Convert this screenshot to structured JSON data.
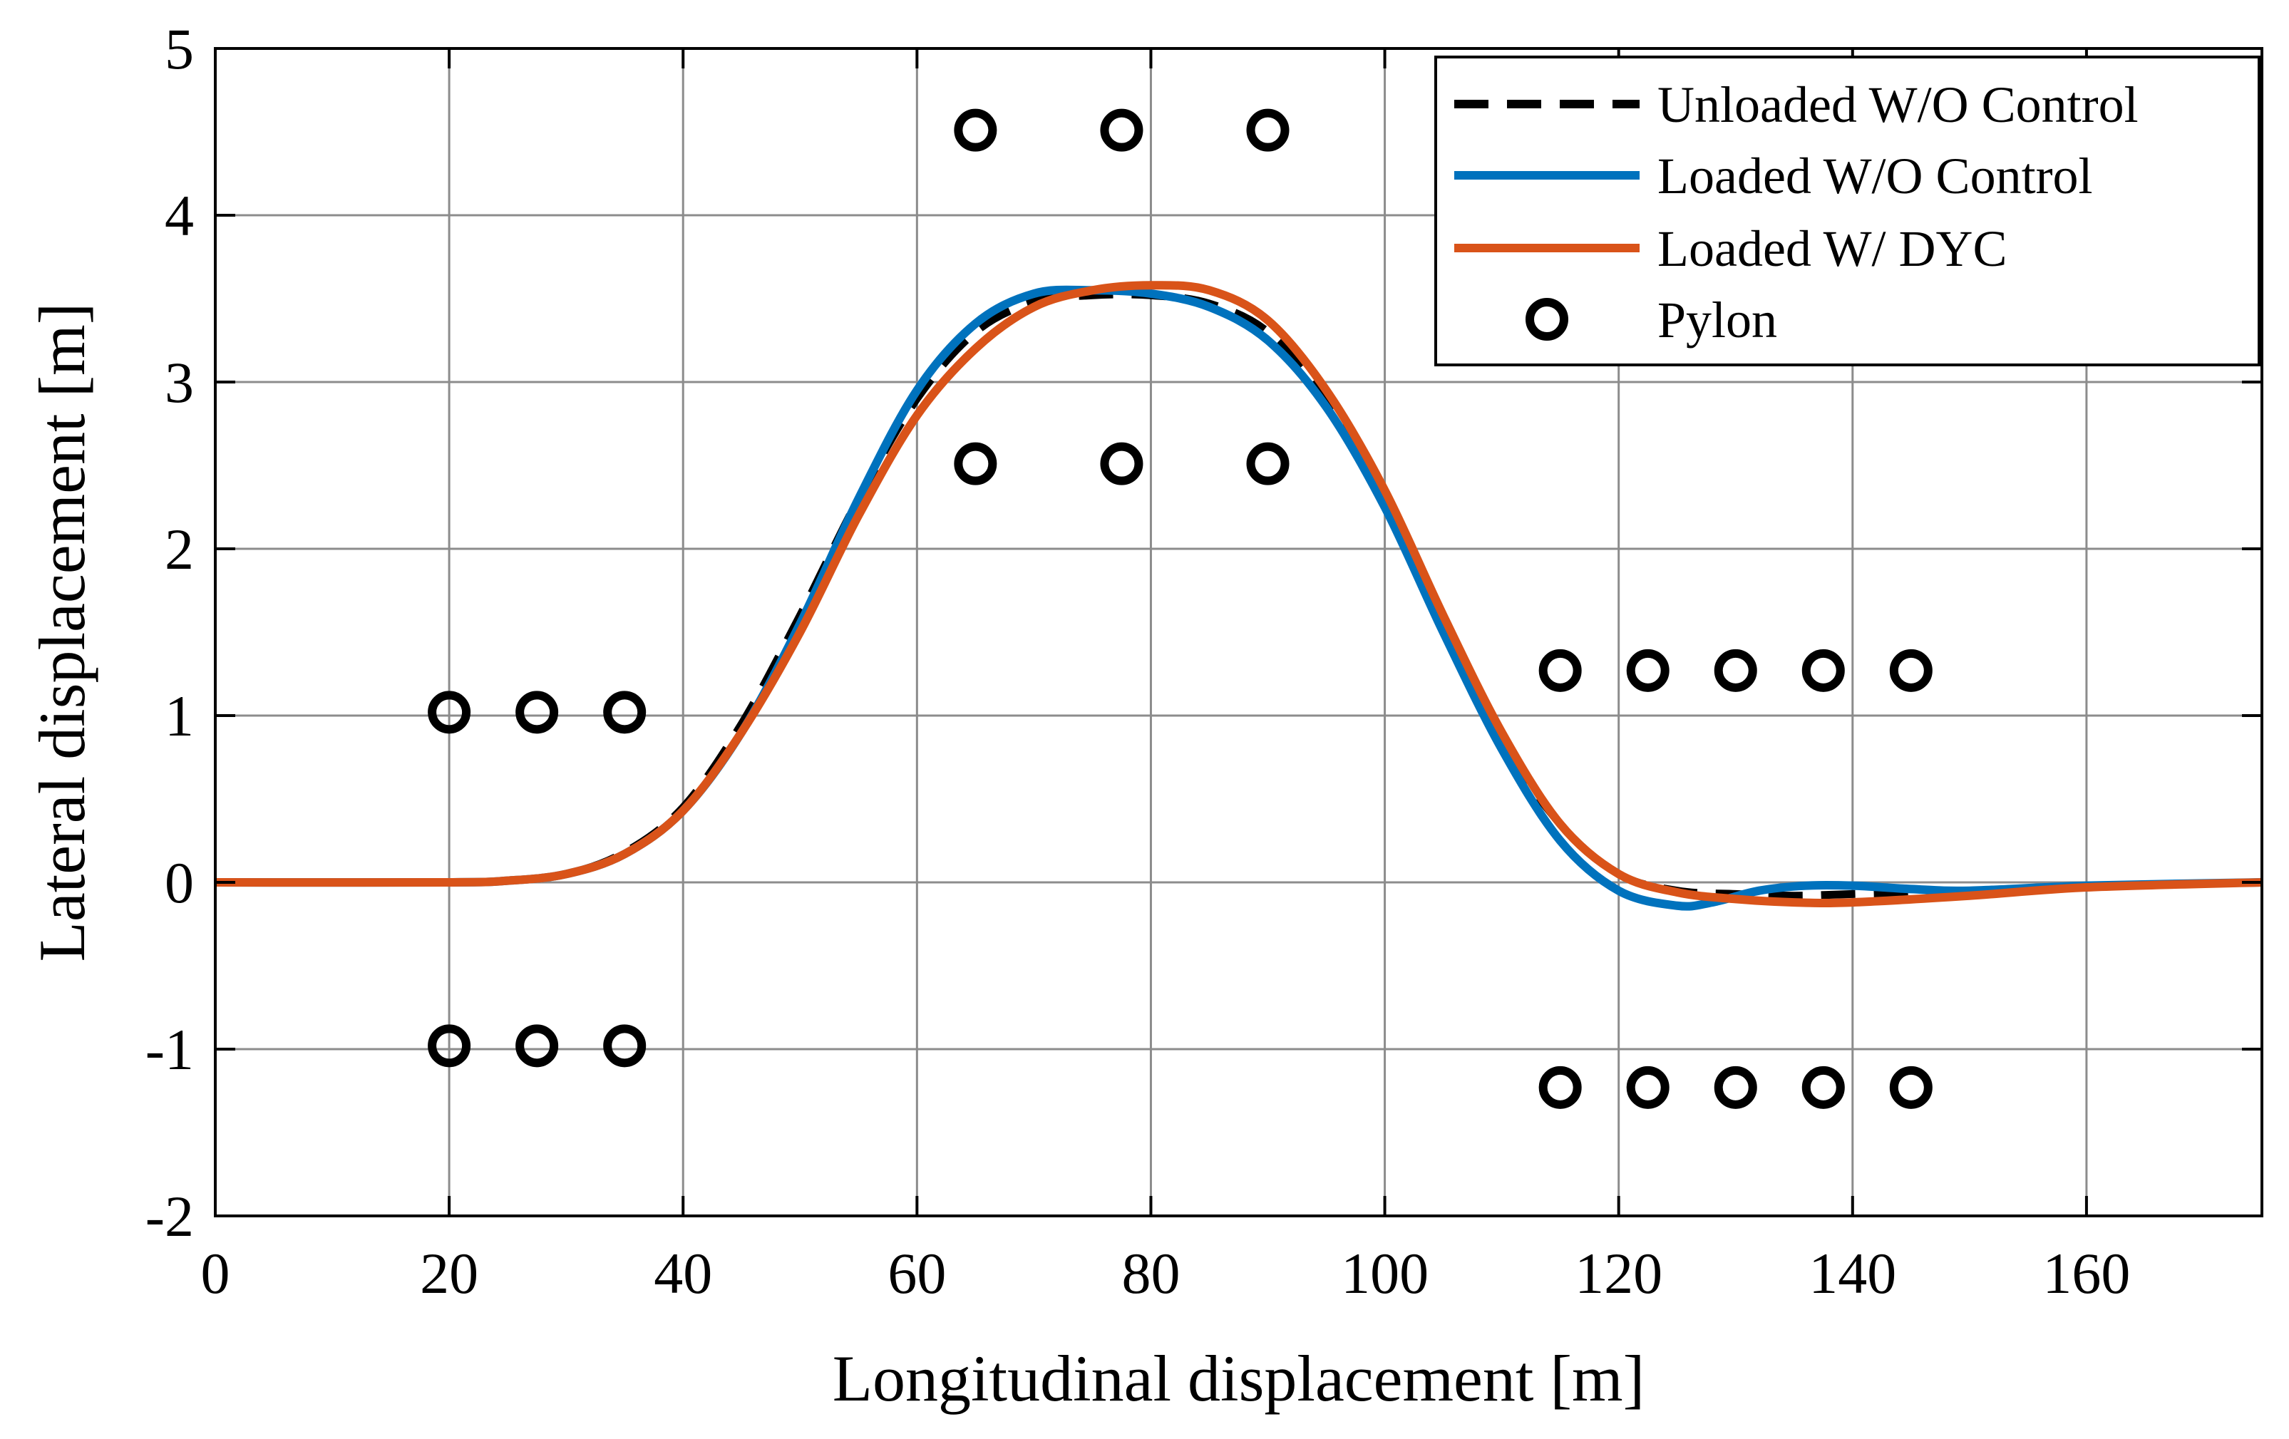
{
  "chart_data": {
    "type": "line",
    "title": "",
    "xlabel": "Longitudinal displacement [m]",
    "ylabel": "Lateral displacement [m]",
    "xlim": [
      0,
      175
    ],
    "ylim": [
      -2,
      5
    ],
    "xticks": [
      0,
      20,
      40,
      60,
      80,
      100,
      120,
      140,
      160
    ],
    "yticks": [
      -2,
      -1,
      0,
      1,
      2,
      3,
      4,
      5
    ],
    "xtick_labels": [
      "0",
      "20",
      "40",
      "60",
      "80",
      "100",
      "120",
      "140",
      "160"
    ],
    "ytick_labels": [
      "-2",
      "-1",
      "0",
      "1",
      "2",
      "3",
      "4",
      "5"
    ],
    "grid": true,
    "legend_position": "top-right",
    "series": [
      {
        "name": "Unloaded W/O Control",
        "color": "#000000",
        "style": "dashed",
        "x": [
          0,
          20,
          25,
          30,
          35,
          40,
          45,
          50,
          55,
          60,
          65,
          70,
          75,
          80,
          85,
          90,
          95,
          100,
          105,
          110,
          115,
          120,
          125,
          130,
          135,
          140,
          150,
          160,
          175
        ],
        "y": [
          0,
          0,
          0.01,
          0.05,
          0.18,
          0.45,
          0.95,
          1.6,
          2.3,
          2.9,
          3.3,
          3.48,
          3.52,
          3.52,
          3.47,
          3.3,
          2.9,
          2.3,
          1.55,
          0.85,
          0.35,
          0.05,
          -0.05,
          -0.07,
          -0.08,
          -0.07,
          -0.05,
          -0.02,
          0
        ]
      },
      {
        "name": "Loaded W/O Control",
        "color": "#0072BD",
        "style": "solid",
        "x": [
          0,
          20,
          25,
          30,
          35,
          40,
          45,
          50,
          55,
          60,
          65,
          70,
          75,
          80,
          85,
          90,
          95,
          100,
          105,
          110,
          115,
          120,
          125,
          128,
          132,
          136,
          140,
          145,
          150,
          160,
          175
        ],
        "y": [
          0,
          0,
          0.01,
          0.05,
          0.17,
          0.43,
          0.9,
          1.55,
          2.3,
          2.95,
          3.35,
          3.53,
          3.55,
          3.53,
          3.45,
          3.25,
          2.85,
          2.25,
          1.5,
          0.8,
          0.25,
          -0.05,
          -0.14,
          -0.12,
          -0.05,
          -0.02,
          -0.02,
          -0.04,
          -0.05,
          -0.02,
          0
        ]
      },
      {
        "name": "Loaded W/ DYC",
        "color": "#D95319",
        "style": "solid",
        "x": [
          0,
          20,
          25,
          30,
          35,
          40,
          45,
          50,
          55,
          60,
          65,
          70,
          75,
          80,
          85,
          90,
          95,
          100,
          105,
          110,
          115,
          120,
          125,
          130,
          135,
          140,
          150,
          160,
          175
        ],
        "y": [
          0,
          0,
          0.01,
          0.05,
          0.17,
          0.43,
          0.9,
          1.5,
          2.2,
          2.8,
          3.2,
          3.45,
          3.55,
          3.58,
          3.55,
          3.37,
          2.95,
          2.35,
          1.6,
          0.9,
          0.35,
          0.05,
          -0.06,
          -0.1,
          -0.12,
          -0.12,
          -0.08,
          -0.03,
          0
        ]
      }
    ],
    "pylons": {
      "name": "Pylon",
      "marker": "circle",
      "points": [
        [
          20,
          1.02
        ],
        [
          27.5,
          1.02
        ],
        [
          35,
          1.02
        ],
        [
          20,
          -0.98
        ],
        [
          27.5,
          -0.98
        ],
        [
          35,
          -0.98
        ],
        [
          65,
          4.51
        ],
        [
          77.5,
          4.51
        ],
        [
          90,
          4.51
        ],
        [
          65,
          2.51
        ],
        [
          77.5,
          2.51
        ],
        [
          90,
          2.51
        ],
        [
          115,
          1.27
        ],
        [
          122.5,
          1.27
        ],
        [
          130,
          1.27
        ],
        [
          137.5,
          1.27
        ],
        [
          145,
          1.27
        ],
        [
          115,
          -1.23
        ],
        [
          122.5,
          -1.23
        ],
        [
          130,
          -1.23
        ],
        [
          137.5,
          -1.23
        ],
        [
          145,
          -1.23
        ]
      ]
    }
  }
}
